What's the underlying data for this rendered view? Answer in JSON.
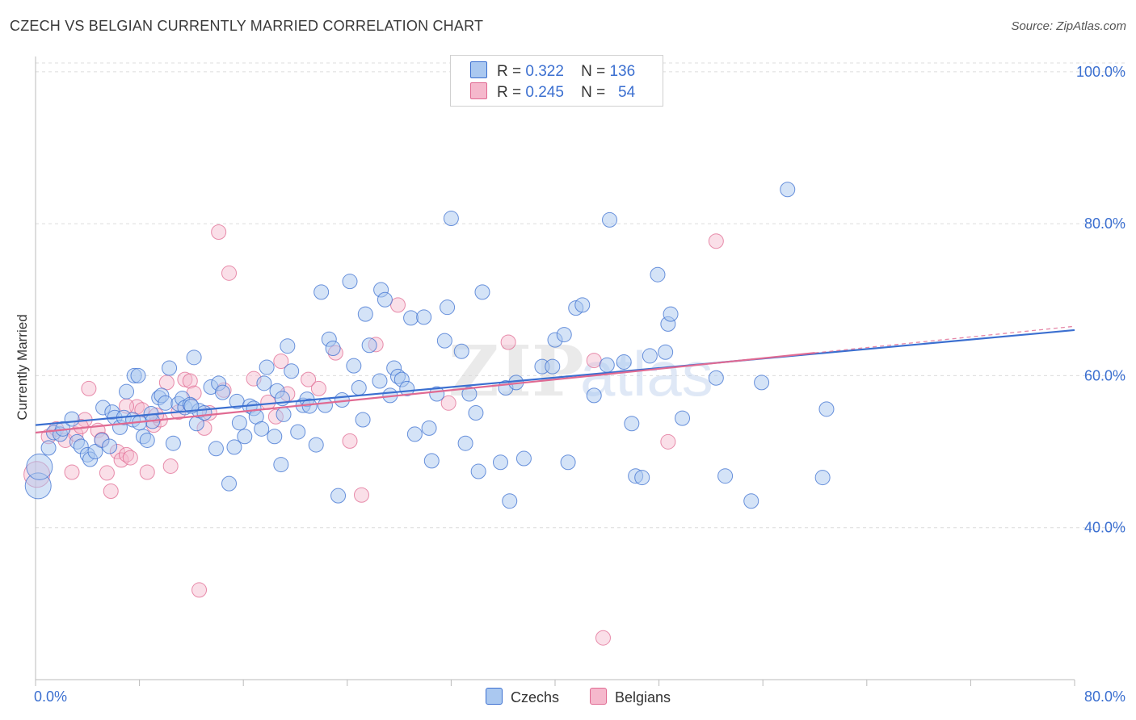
{
  "title": "CZECH VS BELGIAN CURRENTLY MARRIED CORRELATION CHART",
  "source": "Source: ZipAtlas.com",
  "colors": {
    "czechs": "#3b6fd0",
    "belgians": "#e06a92",
    "czechs_fill": "#aac8f0",
    "belgians_fill": "#f5b8cc"
  },
  "legend": {
    "r_label": "R =",
    "n_label": "N =",
    "czechs": {
      "r": "0.322",
      "n": "136"
    },
    "belgians": {
      "r": "0.245",
      "n": "54"
    }
  },
  "bottom_legend": [
    "Czechs",
    "Belgians"
  ],
  "watermark": {
    "part1": "ZIP",
    "part2": "atlas"
  },
  "chart_data": {
    "type": "scatter",
    "xlabel": "",
    "ylabel": "Currently Married",
    "xlim": [
      0,
      80
    ],
    "ylim": [
      20,
      102
    ],
    "x_tick_labels": [
      "0.0%",
      "80.0%"
    ],
    "y_ticks": [
      {
        "value": 40,
        "label": "40.0%"
      },
      {
        "value": 60,
        "label": "60.0%"
      },
      {
        "value": 80,
        "label": "80.0%"
      },
      {
        "value": 100,
        "label": "100.0%"
      }
    ],
    "grid": "horizontal dashed",
    "legend_position": "top-center",
    "trendlines": [
      {
        "series": "Czechs",
        "x": [
          0,
          80
        ],
        "y": [
          53.5,
          66.0
        ]
      },
      {
        "series": "Belgians",
        "x": [
          0,
          60
        ],
        "y": [
          52.5,
          63.0
        ]
      }
    ],
    "series": [
      {
        "name": "Czechs",
        "points": [
          [
            0.2,
            45.5
          ],
          [
            0.3,
            48
          ],
          [
            1.0,
            50.5
          ],
          [
            1.4,
            52.5
          ],
          [
            1.9,
            52.3
          ],
          [
            2.1,
            53
          ],
          [
            2.8,
            54.3
          ],
          [
            3.2,
            51.3
          ],
          [
            3.5,
            50.7
          ],
          [
            4.0,
            49.6
          ],
          [
            4.2,
            49
          ],
          [
            4.6,
            50
          ],
          [
            5.1,
            51.5
          ],
          [
            5.2,
            55.8
          ],
          [
            5.7,
            50.7
          ],
          [
            5.9,
            55.2
          ],
          [
            6.1,
            54.5
          ],
          [
            6.5,
            53.2
          ],
          [
            6.8,
            54.5
          ],
          [
            7.0,
            57.9
          ],
          [
            7.5,
            54.2
          ],
          [
            7.6,
            60
          ],
          [
            7.9,
            60
          ],
          [
            8.3,
            52
          ],
          [
            8.6,
            51.5
          ],
          [
            8.9,
            55
          ],
          [
            9.0,
            54
          ],
          [
            9.5,
            57.1
          ],
          [
            9.7,
            57.4
          ],
          [
            10.0,
            56.4
          ],
          [
            10.3,
            61
          ],
          [
            10.6,
            51.1
          ],
          [
            11.0,
            56.3
          ],
          [
            11.3,
            57
          ],
          [
            11.5,
            55.8
          ],
          [
            11.9,
            56.2
          ],
          [
            12.2,
            62.4
          ],
          [
            12.4,
            53.7
          ],
          [
            12.6,
            55.4
          ],
          [
            13.0,
            55.1
          ],
          [
            13.5,
            58.5
          ],
          [
            13.9,
            50.4
          ],
          [
            14.1,
            59
          ],
          [
            14.4,
            57.8
          ],
          [
            14.9,
            45.8
          ],
          [
            15.3,
            50.6
          ],
          [
            15.5,
            56.6
          ],
          [
            15.7,
            53.8
          ],
          [
            16.1,
            52
          ],
          [
            16.5,
            56
          ],
          [
            16.8,
            55.7
          ],
          [
            17.0,
            54.6
          ],
          [
            17.4,
            53
          ],
          [
            17.6,
            59
          ],
          [
            17.8,
            61.1
          ],
          [
            18.4,
            52
          ],
          [
            18.6,
            58
          ],
          [
            18.9,
            48.3
          ],
          [
            19.1,
            54.9
          ],
          [
            19.4,
            63.9
          ],
          [
            19.7,
            60.6
          ],
          [
            20.2,
            52.6
          ],
          [
            20.6,
            56.1
          ],
          [
            20.9,
            56.9
          ],
          [
            21.1,
            56
          ],
          [
            21.6,
            50.9
          ],
          [
            22.0,
            71
          ],
          [
            22.3,
            56.1
          ],
          [
            22.6,
            64.8
          ],
          [
            22.9,
            63.6
          ],
          [
            23.3,
            44.2
          ],
          [
            23.6,
            56.8
          ],
          [
            24.2,
            72.4
          ],
          [
            24.5,
            61.3
          ],
          [
            24.9,
            58.4
          ],
          [
            25.2,
            54.2
          ],
          [
            25.4,
            68.1
          ],
          [
            25.7,
            64
          ],
          [
            26.6,
            71.3
          ],
          [
            26.9,
            70
          ],
          [
            27.3,
            57.4
          ],
          [
            27.6,
            61
          ],
          [
            27.9,
            59.9
          ],
          [
            28.2,
            59.5
          ],
          [
            28.6,
            58.3
          ],
          [
            28.9,
            67.6
          ],
          [
            29.2,
            52.3
          ],
          [
            29.9,
            67.7
          ],
          [
            30.3,
            53.1
          ],
          [
            30.5,
            48.8
          ],
          [
            30.9,
            57.6
          ],
          [
            31.5,
            64.6
          ],
          [
            31.7,
            69
          ],
          [
            32.0,
            80.7
          ],
          [
            32.8,
            63.2
          ],
          [
            33.1,
            51.1
          ],
          [
            33.4,
            57.6
          ],
          [
            33.9,
            55.1
          ],
          [
            34.1,
            47.4
          ],
          [
            34.4,
            71
          ],
          [
            35.8,
            48.6
          ],
          [
            36.2,
            58.4
          ],
          [
            36.5,
            43.5
          ],
          [
            37.0,
            59.1
          ],
          [
            37.6,
            49.1
          ],
          [
            39.0,
            61.2
          ],
          [
            39.8,
            61.2
          ],
          [
            40.0,
            64.7
          ],
          [
            40.7,
            65.4
          ],
          [
            41.0,
            48.6
          ],
          [
            41.6,
            68.9
          ],
          [
            42.1,
            69.3
          ],
          [
            43.0,
            57.4
          ],
          [
            44.0,
            61.4
          ],
          [
            44.2,
            80.5
          ],
          [
            45.3,
            61.8
          ],
          [
            45.9,
            53.7
          ],
          [
            46.2,
            46.8
          ],
          [
            46.7,
            46.6
          ],
          [
            47.3,
            62.6
          ],
          [
            47.9,
            73.3
          ],
          [
            48.5,
            63.1
          ],
          [
            48.7,
            66.8
          ],
          [
            48.9,
            68.1
          ],
          [
            49.8,
            54.4
          ],
          [
            52.4,
            59.7
          ],
          [
            53.1,
            46.8
          ],
          [
            55.1,
            43.5
          ],
          [
            55.9,
            59.1
          ],
          [
            57.9,
            84.5
          ],
          [
            60.6,
            46.6
          ],
          [
            60.9,
            55.6
          ],
          [
            26.5,
            59.3
          ],
          [
            12.0,
            56.0
          ],
          [
            8.0,
            53.8
          ],
          [
            19.0,
            57.0
          ]
        ]
      },
      {
        "name": "Belgians",
        "points": [
          [
            0.1,
            47
          ],
          [
            1.0,
            52
          ],
          [
            1.6,
            53
          ],
          [
            2.3,
            51.5
          ],
          [
            2.8,
            47.3
          ],
          [
            3.1,
            52.3
          ],
          [
            3.8,
            54.2
          ],
          [
            4.1,
            58.3
          ],
          [
            4.8,
            52.8
          ],
          [
            5.1,
            51.6
          ],
          [
            5.5,
            47.2
          ],
          [
            5.8,
            44.8
          ],
          [
            6.3,
            50
          ],
          [
            6.6,
            48.9
          ],
          [
            7.0,
            49.6
          ],
          [
            7.3,
            49.2
          ],
          [
            7.8,
            55.9
          ],
          [
            8.2,
            55.5
          ],
          [
            8.6,
            47.3
          ],
          [
            9.1,
            53.5
          ],
          [
            9.6,
            54.2
          ],
          [
            10.1,
            59.1
          ],
          [
            10.4,
            48.1
          ],
          [
            11.0,
            55.2
          ],
          [
            11.5,
            59.5
          ],
          [
            11.9,
            59.3
          ],
          [
            12.2,
            57.7
          ],
          [
            12.6,
            31.8
          ],
          [
            13.0,
            53.1
          ],
          [
            13.4,
            55.1
          ],
          [
            14.1,
            78.9
          ],
          [
            14.5,
            58.1
          ],
          [
            14.9,
            73.5
          ],
          [
            16.8,
            59.6
          ],
          [
            17.9,
            56.5
          ],
          [
            18.5,
            54.6
          ],
          [
            18.9,
            61.9
          ],
          [
            19.4,
            57.6
          ],
          [
            21.0,
            59.5
          ],
          [
            21.8,
            58.3
          ],
          [
            23.1,
            63
          ],
          [
            24.2,
            51.4
          ],
          [
            25.1,
            44.3
          ],
          [
            26.2,
            64.1
          ],
          [
            27.9,
            69.3
          ],
          [
            31.8,
            56.4
          ],
          [
            36.4,
            64.4
          ],
          [
            43.0,
            62
          ],
          [
            43.7,
            25.5
          ],
          [
            48.7,
            51.3
          ],
          [
            52.4,
            77.7
          ],
          [
            9.3,
            54.8
          ],
          [
            3.5,
            53.3
          ],
          [
            7.0,
            56.0
          ]
        ]
      }
    ]
  }
}
